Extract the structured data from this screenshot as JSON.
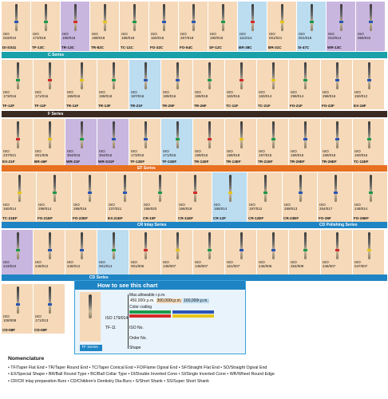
{
  "colors": {
    "peach": "#f5d9b8",
    "purple": "#c9b6df",
    "blue": "#bcdcf0",
    "teal_bar": "#1aa0a8",
    "dark_bar": "#3b2a22",
    "orange_bar": "#e8701f",
    "legend_blue": "#1f84c4"
  },
  "rows": [
    [
      {
        "iso": "ISO 019/010",
        "code": "DI-SS41",
        "bg": "peach"
      },
      {
        "iso": "ISO 173/018",
        "code": "TF-13C",
        "bg": "peach"
      },
      {
        "iso": "ISO 198/018",
        "code": "TR-13C",
        "bg": "purple"
      },
      {
        "iso": "ISO 198/018",
        "code": "TR-82C",
        "bg": "peach"
      },
      {
        "iso": "ISO 198/018",
        "code": "TC-11C",
        "bg": "peach"
      },
      {
        "iso": "ISO 160/016",
        "code": "FO-32C",
        "bg": "peach"
      },
      {
        "iso": "ISO 257/018",
        "code": "FO-54C",
        "bg": "peach"
      },
      {
        "iso": "ISO 190/018",
        "code": "SF-12C",
        "bg": "peach"
      },
      {
        "iso": "ISO 111/014",
        "code": "BR-38C",
        "bg": "blue"
      },
      {
        "iso": "ISO 001/021",
        "code": "BR-31C",
        "bg": "peach"
      },
      {
        "iso": "ISO 001/018",
        "code": "SI-47C",
        "bg": "blue"
      },
      {
        "iso": "ISO 010/014",
        "code": "WR-13C",
        "bg": "purple"
      },
      {
        "iso": "ISO 068/042",
        "code": "",
        "bg": "purple"
      }
    ],
    [
      {
        "iso": "ISO 173/016",
        "code": "TF-12F",
        "bg": "peach"
      },
      {
        "iso": "ISO 171/016",
        "code": "TF-11F",
        "bg": "peach"
      },
      {
        "iso": "ISO 199/016",
        "code": "TR-11F",
        "bg": "peach"
      },
      {
        "iso": "ISO 198/018",
        "code": "TR-13F",
        "bg": "peach"
      },
      {
        "iso": "ISO 197/016",
        "code": "TR-21F",
        "bg": "blue"
      },
      {
        "iso": "ISO 199/016",
        "code": "TR-25F",
        "bg": "peach"
      },
      {
        "iso": "ISO 199/018",
        "code": "TR-26F",
        "bg": "peach"
      },
      {
        "iso": "ISO 160/016",
        "code": "TC-11F",
        "bg": "peach"
      },
      {
        "iso": "ISO 160/014",
        "code": "TC-21F",
        "bg": "peach"
      },
      {
        "iso": "ISO 298/014",
        "code": "FO-21F",
        "bg": "peach"
      },
      {
        "iso": "ISO 298/016",
        "code": "FO-22F",
        "bg": "peach"
      },
      {
        "iso": "ISO 150/012",
        "code": "EX-16F",
        "bg": "peach"
      }
    ],
    [
      {
        "iso": "ISO 237/021",
        "code": "EX-21F",
        "bg": "peach"
      },
      {
        "iso": "ISO 001/006",
        "code": "BR-46F",
        "bg": "peach"
      },
      {
        "iso": "ISO 304/016",
        "code": "WR-31F",
        "bg": "purple"
      },
      {
        "iso": "ISO 304/016",
        "code": "WR-S31F",
        "bg": "purple"
      },
      {
        "iso": "ISO 173/016",
        "code": "TF-12EF",
        "bg": "peach"
      },
      {
        "iso": "ISO 171/016",
        "code": "TF-21EF",
        "bg": "blue"
      },
      {
        "iso": "ISO 199/016",
        "code": "TR-11EF",
        "bg": "peach"
      },
      {
        "iso": "ISO 198/018",
        "code": "TR-13EF",
        "bg": "peach"
      },
      {
        "iso": "ISO 197/016",
        "code": "TR-21EF",
        "bg": "peach"
      },
      {
        "iso": "ISO 199/016",
        "code": "TR-25EF",
        "bg": "peach"
      },
      {
        "iso": "ISO 199/018",
        "code": "TR-26EF",
        "bg": "peach"
      },
      {
        "iso": "ISO 160/016",
        "code": "TC-11EF",
        "bg": "peach"
      }
    ],
    [
      {
        "iso": "ISO 160/014",
        "code": "TC-21EF",
        "bg": "peach"
      },
      {
        "iso": "ISO 298/014",
        "code": "FO-21EF",
        "bg": "peach"
      },
      {
        "iso": "ISO 298/016",
        "code": "FO-22EF",
        "bg": "peach"
      },
      {
        "iso": "ISO 237/021",
        "code": "EX-21EF",
        "bg": "peach"
      },
      {
        "iso": "ISO 196/020",
        "code": "CR-10F",
        "bg": "peach"
      },
      {
        "iso": "ISO 196/019",
        "code": "CR-11EF",
        "bg": "peach"
      },
      {
        "iso": "ISO 195/014",
        "code": "CR-12F",
        "bg": "blue"
      },
      {
        "iso": "ISO 197/012",
        "code": "CR-12EF",
        "bg": "peach"
      },
      {
        "iso": "ISO 289/013",
        "code": "CR-23EF",
        "bg": "peach"
      },
      {
        "iso": "ISO 254/017",
        "code": "FO-36F",
        "bg": "peach"
      },
      {
        "iso": "ISO 248/014",
        "code": "FO-26EF",
        "bg": "peach"
      }
    ],
    [
      {
        "iso": "ISO 243/010",
        "code": "FO-40EF",
        "bg": "purple"
      },
      {
        "iso": "ISO 248/012",
        "code": "FO-41EF",
        "bg": "peach"
      },
      {
        "iso": "ISO 248/012",
        "code": "FO-42EF",
        "bg": "peach"
      },
      {
        "iso": "ISO 001/014",
        "code": "BR-48EF",
        "bg": "blue"
      },
      {
        "iso": "ISO 001/006",
        "code": "CD-50F",
        "bg": "peach"
      },
      {
        "iso": "ISO 138/007",
        "code": "CD-51F",
        "bg": "peach"
      },
      {
        "iso": "ISO 138/007",
        "code": "CD-52F",
        "bg": "peach"
      },
      {
        "iso": "ISO 161/007",
        "code": "CD-53F",
        "bg": "peach"
      },
      {
        "iso": "ISO 246/006",
        "code": "CD-54F",
        "bg": "peach"
      },
      {
        "iso": "ISO 254/009",
        "code": "CD-55F",
        "bg": "peach"
      },
      {
        "iso": "ISO 246/007",
        "code": "CD-56F",
        "bg": "peach"
      },
      {
        "iso": "ISO 047/007",
        "code": "CD-57F",
        "bg": "peach"
      }
    ],
    [
      {
        "iso": "ISO 108/008",
        "code": "CD-58F",
        "bg": "peach"
      },
      {
        "iso": "ISO 171/013",
        "code": "CD-59F",
        "bg": "peach"
      }
    ]
  ],
  "series": {
    "c": "C Series",
    "f": "F Series",
    "ef": "EF Series",
    "cr": "CR Inlay Series",
    "cd_polish": "CD Polishing Series",
    "cd": "CD Series"
  },
  "legend": {
    "title": "How to see this chart",
    "max_rpm": "Max.allowable r.p.m.",
    "rpm_values": [
      "450,000r.p.m.",
      "300,000r.p.m.",
      "160,000r.p.m."
    ],
    "color_coding": "Color coding",
    "iso_value": "ISO 179/014",
    "iso_no": "ISO No.",
    "order_value": "TF-11",
    "order_no": "Order No.",
    "series_label": "TF Series",
    "shape": "Shape"
  },
  "nomenclature": {
    "title": "Nomenclature",
    "lines": [
      "• TF/Taper Flat End  • TR/Taper Round End  • TC/Taper Conical End  • FO/Flame Ogival End  • SF/Straight Flat End  • SO/Straight Ogival End",
      "• EX/Special Shape  • BR/Ball Round Type  • BC/Ball Collar Type  • DI/Double Inverted Cone  • SI/Single Inverted Cone  • WR/Wheel Round Edge",
      "• CR/CR inlay preparation Burs  • CD/Children's Dentistry Dia-Burs  • S/Short Shank  • SS/Super Short Shank"
    ]
  }
}
